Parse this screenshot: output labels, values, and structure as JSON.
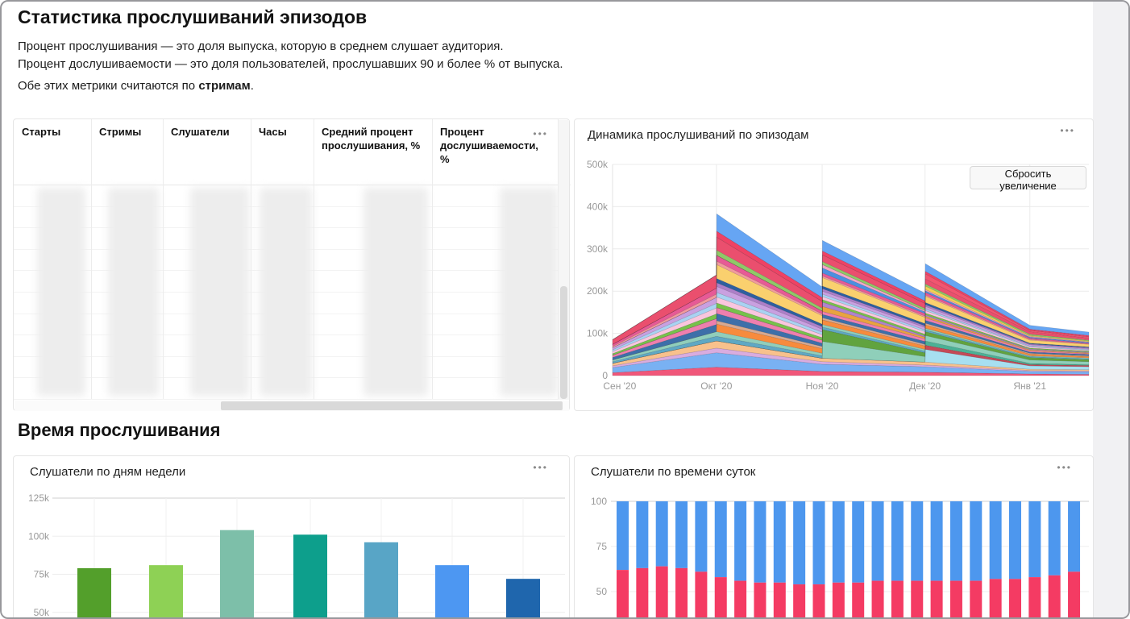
{
  "ui": {
    "more_icon": "•••"
  },
  "header": {
    "title": "Статистика прослушиваний эпизодов",
    "description_lines": [
      "Процент прослушивания — это доля выпуска, которую в среднем слушает аудитория.",
      "Процент дослушиваемости — это доля пользователей, прослушавших 90 и более % от выпуска."
    ],
    "note_prefix": "Обе этих метрики считаются по ",
    "note_bold": "стримам",
    "note_suffix": "."
  },
  "stats_table": {
    "columns": [
      "Старты",
      "Стримы",
      "Слушатели",
      "Часы",
      "Средний процент прослушивания, %",
      "Процент дослушиваемости, %"
    ],
    "visible_rows": 10,
    "values_blurred": true
  },
  "sections": {
    "listening_time": "Время прослушивания"
  },
  "chart_data": [
    {
      "id": "episodes_dynamics",
      "type": "area",
      "stacked": true,
      "title": "Динамика прослушиваний по эпизодам",
      "reset_zoom_label": "Сбросить увеличение",
      "grid": true,
      "legend": "none",
      "ylim_k": [
        0,
        500
      ],
      "y_ticks": [
        {
          "v": 500,
          "label": "500k"
        },
        {
          "v": 400,
          "label": "400k"
        },
        {
          "v": 300,
          "label": "300k"
        },
        {
          "v": 200,
          "label": "200k"
        },
        {
          "v": 100,
          "label": "100k"
        },
        {
          "v": 0,
          "label": "0"
        }
      ],
      "x_ticks": [
        {
          "t": 0.015,
          "label": "Сен '20",
          "grid": false
        },
        {
          "t": 0.218,
          "label": "Окт '20",
          "grid": true
        },
        {
          "t": 0.44,
          "label": "Ноя '20",
          "grid": true
        },
        {
          "t": 0.656,
          "label": "Дек '20",
          "grid": true
        },
        {
          "t": 0.876,
          "label": "Янв '21",
          "grid": true
        }
      ],
      "x_samples": [
        0,
        0.218,
        0.2185,
        0.44,
        0.4405,
        0.656,
        0.6565,
        0.876,
        1.0
      ],
      "totals_k_at_samples": [
        85,
        238,
        383,
        210,
        320,
        195,
        265,
        119,
        103
      ],
      "series": [
        {
          "color": "#F0577A",
          "values_k": [
            7,
            20,
            20,
            10,
            10,
            8,
            8,
            4,
            3
          ]
        },
        {
          "color": "#79B1F3",
          "values_k": [
            12,
            34,
            34,
            17,
            17,
            13,
            13,
            6,
            6
          ]
        },
        {
          "color": "#D9ACDF",
          "values_k": [
            4,
            11,
            11,
            6,
            6,
            4,
            4,
            2,
            2
          ]
        },
        {
          "color": "#F8C18C",
          "values_k": [
            6,
            17,
            17,
            8,
            8,
            7,
            7,
            3,
            3
          ]
        },
        {
          "color": "#A7DFF0",
          "values_k": [
            0,
            0,
            0,
            0,
            0,
            0,
            30,
            8,
            7
          ]
        },
        {
          "color": "#C44A58",
          "values_k": [
            0,
            0,
            0,
            0,
            0,
            0,
            10,
            3,
            3
          ]
        },
        {
          "color": "#4BB195",
          "values_k": [
            0,
            0,
            0,
            0,
            0,
            0,
            10,
            3,
            2
          ]
        },
        {
          "color": "#8FCFBA",
          "values_k": [
            0,
            0,
            0,
            0,
            40,
            13,
            13,
            8,
            7
          ]
        },
        {
          "color": "#61A33F",
          "values_k": [
            0,
            0,
            0,
            0,
            28,
            9,
            9,
            6,
            5
          ]
        },
        {
          "color": "#5FA8C4",
          "values_k": [
            4,
            11,
            11,
            6,
            6,
            4,
            4,
            2,
            2
          ]
        },
        {
          "color": "#90CEBB",
          "values_k": [
            4,
            11,
            11,
            6,
            6,
            4,
            4,
            2,
            2
          ]
        },
        {
          "color": "#F78B3D",
          "values_k": [
            0,
            0,
            18,
            11,
            11,
            8,
            8,
            4,
            3
          ]
        },
        {
          "color": "#D7A991",
          "values_k": [
            0,
            0,
            8,
            5,
            5,
            4,
            4,
            2,
            2
          ]
        },
        {
          "color": "#3D6FA9",
          "values_k": [
            6,
            17,
            17,
            8,
            8,
            7,
            7,
            3,
            3
          ]
        },
        {
          "color": "#EE7FAE",
          "values_k": [
            5,
            14,
            14,
            7,
            7,
            6,
            6,
            3,
            2
          ]
        },
        {
          "color": "#E8A33F",
          "values_k": [
            0,
            0,
            0,
            0,
            12,
            4,
            4,
            2,
            2
          ]
        },
        {
          "color": "#B083CE",
          "values_k": [
            0,
            0,
            0,
            0,
            10,
            3,
            3,
            2,
            2
          ]
        },
        {
          "color": "#77C14B",
          "values_k": [
            4,
            11,
            11,
            6,
            6,
            4,
            4,
            2,
            2
          ]
        },
        {
          "color": "#F9C6DE",
          "values_k": [
            5,
            14,
            14,
            7,
            7,
            6,
            6,
            3,
            2
          ]
        },
        {
          "color": "#A9D2F2",
          "values_k": [
            4,
            11,
            11,
            6,
            6,
            4,
            4,
            2,
            2
          ]
        },
        {
          "color": "#C9A0E0",
          "values_k": [
            5,
            14,
            14,
            7,
            7,
            6,
            6,
            3,
            2
          ]
        },
        {
          "color": "#AD7FC9",
          "values_k": [
            0,
            0,
            9,
            6,
            6,
            4,
            4,
            2,
            2
          ]
        },
        {
          "color": "#2E5F9F",
          "values_k": [
            0,
            0,
            10,
            6,
            6,
            5,
            5,
            2,
            2
          ]
        },
        {
          "color": "#FAD06E",
          "values_k": [
            0,
            0,
            33,
            20,
            20,
            15,
            15,
            7,
            6
          ]
        },
        {
          "color": "#F29A9E",
          "values_k": [
            3,
            8,
            8,
            4,
            4,
            3,
            3,
            2,
            1
          ]
        },
        {
          "color": "#E75A96",
          "values_k": [
            5,
            14,
            14,
            7,
            7,
            6,
            6,
            3,
            2
          ]
        },
        {
          "color": "#4C8FE0",
          "values_k": [
            0,
            0,
            0,
            0,
            12,
            4,
            4,
            2,
            2
          ]
        },
        {
          "color": "#F5A6C6",
          "values_k": [
            0,
            0,
            0,
            0,
            8,
            3,
            3,
            2,
            1
          ]
        },
        {
          "color": "#F2D055",
          "values_k": [
            0,
            0,
            0,
            0,
            0,
            0,
            8,
            2,
            2
          ]
        },
        {
          "color": "#8FC968",
          "values_k": [
            0,
            0,
            12,
            7,
            7,
            5,
            5,
            3,
            2
          ]
        },
        {
          "color": "#EA4F6E",
          "values_k": [
            11,
            31,
            31,
            16,
            16,
            12,
            12,
            6,
            5
          ]
        },
        {
          "color": "#F25570",
          "values_k": [
            0,
            0,
            0,
            0,
            0,
            0,
            12,
            3,
            3
          ]
        },
        {
          "color": "#EF4265",
          "values_k": [
            0,
            0,
            14,
            9,
            9,
            6,
            6,
            3,
            3
          ]
        },
        {
          "color": "#66A5F3",
          "values_k": [
            0,
            0,
            41,
            25,
            25,
            18,
            18,
            9,
            8
          ]
        }
      ]
    },
    {
      "id": "listeners_by_weekday",
      "type": "bar",
      "title": "Слушатели по дням недели",
      "grid": true,
      "categories_visible": false,
      "ylim_visible_k": [
        50,
        125
      ],
      "y_ticks": [
        {
          "v": 125,
          "label": "125k",
          "strong": true
        },
        {
          "v": 100,
          "label": "100k"
        },
        {
          "v": 75,
          "label": "75k"
        },
        {
          "v": 50,
          "label": "50k"
        }
      ],
      "values_k": [
        79,
        81,
        104,
        101,
        96,
        81,
        72
      ],
      "colors": [
        "#539F2B",
        "#8ED155",
        "#7DBFA9",
        "#0D9F8C",
        "#58A5C6",
        "#4D97F2",
        "#1F66AD"
      ]
    },
    {
      "id": "listeners_by_daytime",
      "type": "stacked_bar_100",
      "title": "Слушатели по времени суток",
      "grid": true,
      "categories_visible": false,
      "ylim_visible": [
        45,
        100
      ],
      "y_ticks": [
        {
          "v": 100,
          "label": "100",
          "strong": true
        },
        {
          "v": 75,
          "label": "75"
        },
        {
          "v": 50,
          "label": "50"
        }
      ],
      "bottom_series": {
        "color": "#F43B63",
        "values": [
          62,
          63,
          64,
          63,
          61,
          58,
          56,
          55,
          55,
          54,
          54,
          55,
          55,
          56,
          56,
          56,
          56,
          56,
          56,
          57,
          57,
          58,
          59,
          61
        ]
      },
      "top_series": {
        "color": "#4D97EE",
        "complement_to": 100
      }
    }
  ]
}
